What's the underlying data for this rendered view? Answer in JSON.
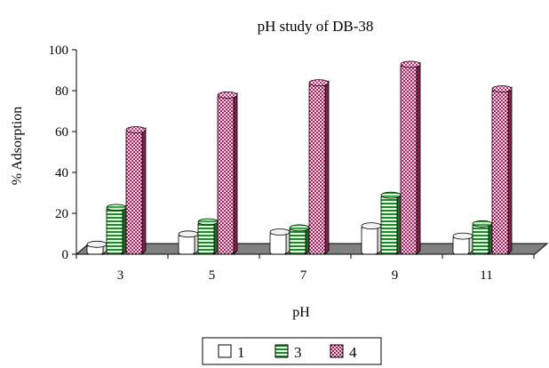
{
  "chart_data": {
    "type": "bar",
    "title": "pH study of DB-38",
    "xlabel": "pH",
    "ylabel": "% Adsorption",
    "categories": [
      "3",
      "5",
      "7",
      "9",
      "11"
    ],
    "ylim": [
      0,
      100
    ],
    "yticks": [
      "0",
      "20",
      "40",
      "60",
      "80",
      "100"
    ],
    "grid": false,
    "legend_position": "bottom",
    "series": [
      {
        "name": "1",
        "values": [
          4,
          9,
          10,
          13,
          8
        ],
        "color": "#ffffff",
        "pattern": "none"
      },
      {
        "name": "3",
        "values": [
          22,
          15,
          12,
          28,
          14
        ],
        "color": "#2e8b2e",
        "pattern": "horizontal-stripes"
      },
      {
        "name": "4",
        "values": [
          60,
          77,
          83,
          92,
          80
        ],
        "color": "#c9347a",
        "pattern": "checker-dots"
      }
    ],
    "style": "3d-cylinder",
    "floor_color": "#808080"
  }
}
